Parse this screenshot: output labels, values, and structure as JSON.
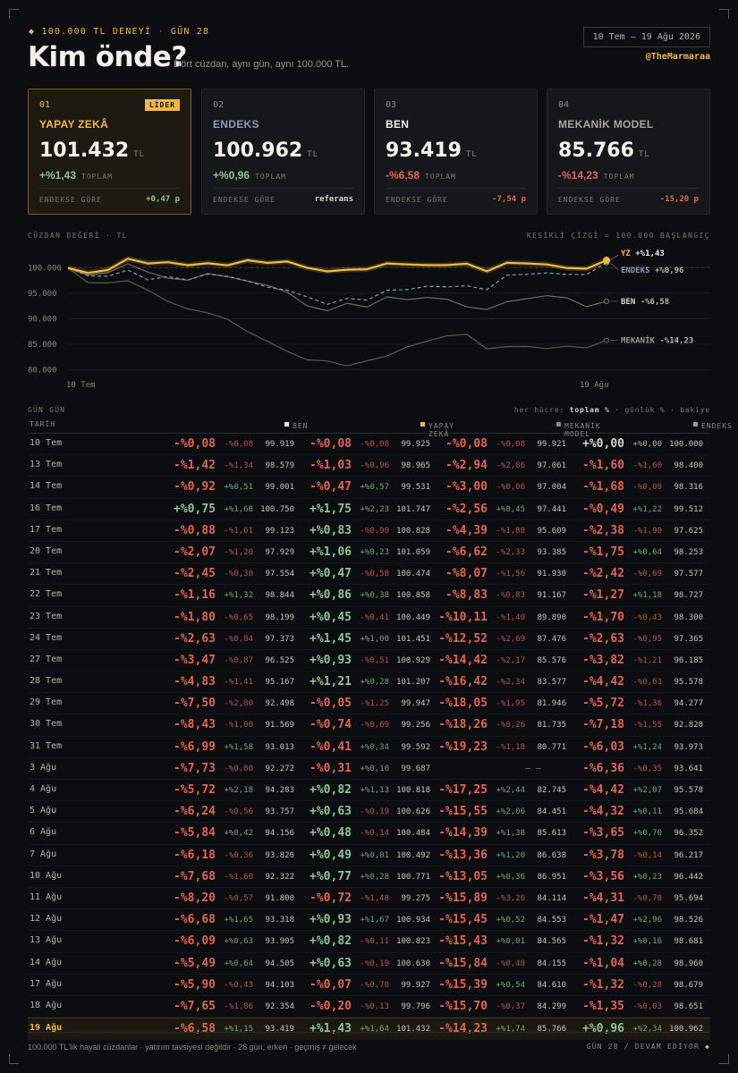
{
  "header": {
    "tag": "100.000 TL DENEYİ",
    "tag_day": "GÜN 28",
    "title": "Kim önde?",
    "subtitle": "Dört cüzdan, aynı gün, aynı 100.000 TL.",
    "date_range": "10 Tem – 19 Ağu 2026",
    "handle": "@TheMarmaraa"
  },
  "cards": [
    {
      "num": "01",
      "name": "YAPAY ZEKÂ",
      "badge": "LİDER",
      "value": "101.432",
      "unit": "TL",
      "pct": "+%1,43",
      "pct_label": "TOPLAM",
      "rel_label": "ENDEKSE GÖRE",
      "rel_value": "+0,47 p",
      "tone": "pos",
      "name_color": "#f5b642"
    },
    {
      "num": "02",
      "name": "ENDEKS",
      "badge": "",
      "value": "100.962",
      "unit": "TL",
      "pct": "+%0,96",
      "pct_label": "TOPLAM",
      "rel_label": "ENDEKSE GÖRE",
      "rel_value": "referans",
      "tone": "pos",
      "name_color": "#8c9ab4"
    },
    {
      "num": "03",
      "name": "BEN",
      "badge": "",
      "value": "93.419",
      "unit": "TL",
      "pct": "-%6,58",
      "pct_label": "TOPLAM",
      "rel_label": "ENDEKSE GÖRE",
      "rel_value": "-7,54 p",
      "tone": "neg",
      "name_color": "#f4f1ea"
    },
    {
      "num": "04",
      "name": "MEKANİK MODEL",
      "badge": "",
      "value": "85.766",
      "unit": "TL",
      "pct": "-%14,23",
      "pct_label": "TOPLAM",
      "rel_label": "ENDEKSE GÖRE",
      "rel_value": "-15,20 p",
      "tone": "neg",
      "name_color": "#a8a49a"
    }
  ],
  "chart_labels": {
    "left": "CÜZDAN DEĞERİ · TL",
    "right": "KESİKLİ ÇİZGİ = 100.000 BAŞLANGIÇ"
  },
  "chart_data": {
    "type": "line",
    "title": "",
    "ylabel": "CÜZDAN DEĞERİ · TL",
    "ylim": [
      78000,
      102500
    ],
    "yticks": [
      100000,
      95000,
      90000,
      85000,
      80000
    ],
    "ytick_labels": [
      "100.000",
      "95.000",
      "90.000",
      "85.000",
      "80.000"
    ],
    "xtick_labels": [
      "10 Tem",
      "19 Ağu"
    ],
    "baseline": 100000,
    "x": [
      "10 Tem",
      "13 Tem",
      "14 Tem",
      "16 Tem",
      "17 Tem",
      "20 Tem",
      "21 Tem",
      "22 Tem",
      "23 Tem",
      "24 Tem",
      "27 Tem",
      "28 Tem",
      "29 Tem",
      "30 Tem",
      "31 Tem",
      "3 Ağu",
      "4 Ağu",
      "5 Ağu",
      "6 Ağu",
      "7 Ağu",
      "10 Ağu",
      "11 Ağu",
      "12 Ağu",
      "13 Ağu",
      "14 Ağu",
      "17 Ağu",
      "18 Ağu",
      "19 Ağu"
    ],
    "series": [
      {
        "key": "yz",
        "name": "YZ",
        "end_label": "+%1,43",
        "color": "#f5b642",
        "values": [
          99925,
          98965,
          99531,
          101747,
          100828,
          101059,
          100474,
          100858,
          100449,
          101451,
          100929,
          101207,
          99947,
          99256,
          99592,
          99687,
          100818,
          100626,
          100484,
          100492,
          100771,
          99275,
          100934,
          100823,
          100630,
          99927,
          99796,
          101432
        ]
      },
      {
        "key": "endeks",
        "name": "ENDEKS",
        "end_label": "+%0,96",
        "color": "#8c9ab4",
        "values": [
          100000,
          98400,
          98316,
          99512,
          97625,
          98253,
          97577,
          98727,
          98300,
          97365,
          96185,
          95578,
          94277,
          92820,
          93973,
          93641,
          95578,
          95684,
          96352,
          96217,
          96442,
          95694,
          98526,
          98681,
          98960,
          98679,
          98651,
          100962
        ]
      },
      {
        "key": "ben",
        "name": "BEN",
        "end_label": "-%6,58",
        "color": "#6e6c66",
        "values": [
          99919,
          98579,
          99001,
          100750,
          99123,
          97929,
          97554,
          98844,
          98199,
          97373,
          96525,
          95167,
          92498,
          91569,
          93013,
          92272,
          94283,
          93757,
          94156,
          93820,
          92322,
          91800,
          93318,
          93905,
          94505,
          94103,
          92354,
          93419
        ]
      },
      {
        "key": "mekanik",
        "name": "MEKANİK",
        "end_label": "-%14,23",
        "color": "#5a5954",
        "values": [
          99921,
          97061,
          97004,
          97441,
          95609,
          93385,
          91930,
          91167,
          89890,
          87476,
          85576,
          83577,
          81946,
          81735,
          80771,
          null,
          82745,
          84451,
          85613,
          86638,
          86951,
          84114,
          84553,
          84565,
          84155,
          84610,
          84299,
          85766
        ]
      }
    ]
  },
  "table": {
    "heading": "GÜN GÜN",
    "hint_prefix": "her hücre:",
    "hint_bold": "toplam %",
    "hint_suffix": "· günlük % · bakiye",
    "col_date": "TARİH",
    "columns": [
      {
        "name": "BEN",
        "color": "#e8e6e0"
      },
      {
        "name": "YAPAY ZEKÂ",
        "color": "#f5b642"
      },
      {
        "name": "MEKANİK MODEL",
        "color": "#8a8880"
      },
      {
        "name": "ENDEKS",
        "color": "#8c9ab4"
      }
    ],
    "rows": [
      {
        "date": "10 Tem",
        "cells": [
          [
            "-%0,08",
            "-%0,08",
            "99.919"
          ],
          [
            "-%0,08",
            "-%0,08",
            "99.925"
          ],
          [
            "-%0,08",
            "-%0,08",
            "99.921"
          ],
          [
            "+%0,00",
            "+%0,00",
            "100.000"
          ]
        ]
      },
      {
        "date": "13 Tem",
        "cells": [
          [
            "-%1,42",
            "-%1,34",
            "98.579"
          ],
          [
            "-%1,03",
            "-%0,96",
            "98.965"
          ],
          [
            "-%2,94",
            "-%2,86",
            "97.061"
          ],
          [
            "-%1,60",
            "-%1,60",
            "98.400"
          ]
        ]
      },
      {
        "date": "14 Tem",
        "cells": [
          [
            "-%0,92",
            "+%0,51",
            "99.001"
          ],
          [
            "-%0,47",
            "+%0,57",
            "99.531"
          ],
          [
            "-%3,00",
            "-%0,06",
            "97.004"
          ],
          [
            "-%1,68",
            "-%0,09",
            "98.316"
          ]
        ]
      },
      {
        "date": "16 Tem",
        "cells": [
          [
            "+%0,75",
            "+%1,68",
            "100.750"
          ],
          [
            "+%1,75",
            "+%2,23",
            "101.747"
          ],
          [
            "-%2,56",
            "+%0,45",
            "97.441"
          ],
          [
            "-%0,49",
            "+%1,22",
            "99.512"
          ]
        ]
      },
      {
        "date": "17 Tem",
        "cells": [
          [
            "-%0,88",
            "-%1,61",
            "99.123"
          ],
          [
            "+%0,83",
            "-%0,90",
            "100.828"
          ],
          [
            "-%4,39",
            "-%1,88",
            "95.609"
          ],
          [
            "-%2,38",
            "-%1,90",
            "97.625"
          ]
        ]
      },
      {
        "date": "20 Tem",
        "cells": [
          [
            "-%2,07",
            "-%1,20",
            "97.929"
          ],
          [
            "+%1,06",
            "+%0,23",
            "101.059"
          ],
          [
            "-%6,62",
            "-%2,33",
            "93.385"
          ],
          [
            "-%1,75",
            "+%0,64",
            "98.253"
          ]
        ]
      },
      {
        "date": "21 Tem",
        "cells": [
          [
            "-%2,45",
            "-%0,38",
            "97.554"
          ],
          [
            "+%0,47",
            "-%0,58",
            "100.474"
          ],
          [
            "-%8,07",
            "-%1,56",
            "91.930"
          ],
          [
            "-%2,42",
            "-%0,69",
            "97.577"
          ]
        ]
      },
      {
        "date": "22 Tem",
        "cells": [
          [
            "-%1,16",
            "+%1,32",
            "98.844"
          ],
          [
            "+%0,86",
            "+%0,38",
            "100.858"
          ],
          [
            "-%8,83",
            "-%0,83",
            "91.167"
          ],
          [
            "-%1,27",
            "+%1,18",
            "98.727"
          ]
        ]
      },
      {
        "date": "23 Tem",
        "cells": [
          [
            "-%1,80",
            "-%0,65",
            "98.199"
          ],
          [
            "+%0,45",
            "-%0,41",
            "100.449"
          ],
          [
            "-%10,11",
            "-%1,40",
            "89.890"
          ],
          [
            "-%1,70",
            "-%0,43",
            "98.300"
          ]
        ]
      },
      {
        "date": "24 Tem",
        "cells": [
          [
            "-%2,63",
            "-%0,84",
            "97.373"
          ],
          [
            "+%1,45",
            "+%1,00",
            "101.451"
          ],
          [
            "-%12,52",
            "-%2,69",
            "87.476"
          ],
          [
            "-%2,63",
            "-%0,95",
            "97.365"
          ]
        ]
      },
      {
        "date": "27 Tem",
        "cells": [
          [
            "-%3,47",
            "-%0,87",
            "96.525"
          ],
          [
            "+%0,93",
            "-%0,51",
            "100.929"
          ],
          [
            "-%14,42",
            "-%2,17",
            "85.576"
          ],
          [
            "-%3,82",
            "-%1,21",
            "96.185"
          ]
        ]
      },
      {
        "date": "28 Tem",
        "cells": [
          [
            "-%4,83",
            "-%1,41",
            "95.167"
          ],
          [
            "+%1,21",
            "+%0,28",
            "101.207"
          ],
          [
            "-%16,42",
            "-%2,34",
            "83.577"
          ],
          [
            "-%4,42",
            "-%0,63",
            "95.578"
          ]
        ]
      },
      {
        "date": "29 Tem",
        "cells": [
          [
            "-%7,50",
            "-%2,80",
            "92.498"
          ],
          [
            "-%0,05",
            "-%1,25",
            "99.947"
          ],
          [
            "-%18,05",
            "-%1,95",
            "81.946"
          ],
          [
            "-%5,72",
            "-%1,36",
            "94.277"
          ]
        ]
      },
      {
        "date": "30 Tem",
        "cells": [
          [
            "-%8,43",
            "-%1,00",
            "91.569"
          ],
          [
            "-%0,74",
            "-%0,69",
            "99.256"
          ],
          [
            "-%18,26",
            "-%0,26",
            "81.735"
          ],
          [
            "-%7,18",
            "-%1,55",
            "92.820"
          ]
        ]
      },
      {
        "date": "31 Tem",
        "cells": [
          [
            "-%6,99",
            "+%1,58",
            "93.013"
          ],
          [
            "-%0,41",
            "+%0,34",
            "99.592"
          ],
          [
            "-%19,23",
            "-%1,18",
            "80.771"
          ],
          [
            "-%6,03",
            "+%1,24",
            "93.973"
          ]
        ]
      },
      {
        "date": "3 Ağu",
        "cells": [
          [
            "-%7,73",
            "-%0,80",
            "92.272"
          ],
          [
            "-%0,31",
            "+%0,10",
            "99.687"
          ],
          [
            "— —",
            "",
            ""
          ],
          [
            "-%6,36",
            "-%0,35",
            "93.641"
          ]
        ]
      },
      {
        "date": "4 Ağu",
        "cells": [
          [
            "-%5,72",
            "+%2,18",
            "94.283"
          ],
          [
            "+%0,82",
            "+%1,13",
            "100.818"
          ],
          [
            "-%17,25",
            "+%2,44",
            "82.745"
          ],
          [
            "-%4,42",
            "+%2,07",
            "95.578"
          ]
        ]
      },
      {
        "date": "5 Ağu",
        "cells": [
          [
            "-%6,24",
            "-%0,56",
            "93.757"
          ],
          [
            "+%0,63",
            "-%0,19",
            "100.626"
          ],
          [
            "-%15,55",
            "+%2,06",
            "84.451"
          ],
          [
            "-%4,32",
            "+%0,11",
            "95.684"
          ]
        ]
      },
      {
        "date": "6 Ağu",
        "cells": [
          [
            "-%5,84",
            "+%0,42",
            "94.156"
          ],
          [
            "+%0,48",
            "-%0,14",
            "100.484"
          ],
          [
            "-%14,39",
            "+%1,38",
            "85.613"
          ],
          [
            "-%3,65",
            "+%0,70",
            "96.352"
          ]
        ]
      },
      {
        "date": "7 Ağu",
        "cells": [
          [
            "-%6,18",
            "-%0,36",
            "93.820"
          ],
          [
            "+%0,49",
            "+%0,01",
            "100.492"
          ],
          [
            "-%13,36",
            "+%1,20",
            "86.638"
          ],
          [
            "-%3,78",
            "-%0,14",
            "96.217"
          ]
        ]
      },
      {
        "date": "10 Ağu",
        "cells": [
          [
            "-%7,68",
            "-%1,60",
            "92.322"
          ],
          [
            "+%0,77",
            "+%0,28",
            "100.771"
          ],
          [
            "-%13,05",
            "+%0,36",
            "86.951"
          ],
          [
            "-%3,56",
            "+%0,23",
            "96.442"
          ]
        ]
      },
      {
        "date": "11 Ağu",
        "cells": [
          [
            "-%8,20",
            "-%0,57",
            "91.800"
          ],
          [
            "-%0,72",
            "-%1,48",
            "99.275"
          ],
          [
            "-%15,89",
            "-%3,26",
            "84.114"
          ],
          [
            "-%4,31",
            "-%0,78",
            "95.694"
          ]
        ]
      },
      {
        "date": "12 Ağu",
        "cells": [
          [
            "-%6,68",
            "+%1,65",
            "93.318"
          ],
          [
            "+%0,93",
            "+%1,67",
            "100.934"
          ],
          [
            "-%15,45",
            "+%0,52",
            "84.553"
          ],
          [
            "-%1,47",
            "+%2,96",
            "98.526"
          ]
        ]
      },
      {
        "date": "13 Ağu",
        "cells": [
          [
            "-%6,09",
            "+%0,63",
            "93.905"
          ],
          [
            "+%0,82",
            "-%0,11",
            "100.823"
          ],
          [
            "-%15,43",
            "+%0,01",
            "84.565"
          ],
          [
            "-%1,32",
            "+%0,16",
            "98.681"
          ]
        ]
      },
      {
        "date": "14 Ağu",
        "cells": [
          [
            "-%5,49",
            "+%0,64",
            "94.505"
          ],
          [
            "+%0,63",
            "-%0,19",
            "100.630"
          ],
          [
            "-%15,84",
            "-%0,48",
            "84.155"
          ],
          [
            "-%1,04",
            "+%0,28",
            "98.960"
          ]
        ]
      },
      {
        "date": "17 Ağu",
        "cells": [
          [
            "-%5,90",
            "-%0,43",
            "94.103"
          ],
          [
            "-%0,07",
            "-%0,70",
            "99.927"
          ],
          [
            "-%15,39",
            "+%0,54",
            "84.610"
          ],
          [
            "-%1,32",
            "-%0,28",
            "98.679"
          ]
        ]
      },
      {
        "date": "18 Ağu",
        "cells": [
          [
            "-%7,65",
            "-%1,86",
            "92.354"
          ],
          [
            "-%0,20",
            "-%0,13",
            "99.796"
          ],
          [
            "-%15,70",
            "-%0,37",
            "84.299"
          ],
          [
            "-%1,35",
            "-%0,03",
            "98.651"
          ]
        ]
      },
      {
        "date": "19 Ağu",
        "cells": [
          [
            "-%6,58",
            "+%1,15",
            "93.419"
          ],
          [
            "+%1,43",
            "+%1,64",
            "101.432"
          ],
          [
            "-%14,23",
            "+%1,74",
            "85.766"
          ],
          [
            "+%0,96",
            "+%2,34",
            "100.962"
          ]
        ]
      }
    ]
  },
  "footer": {
    "left": "100.000 TL'lik hayali cüzdanlar · yatırım tavsiyesi değildir · 28 gün, erken · geçmiş ≠ gelecek",
    "right": "GÜN 28 / DEVAM EDİYOR"
  }
}
